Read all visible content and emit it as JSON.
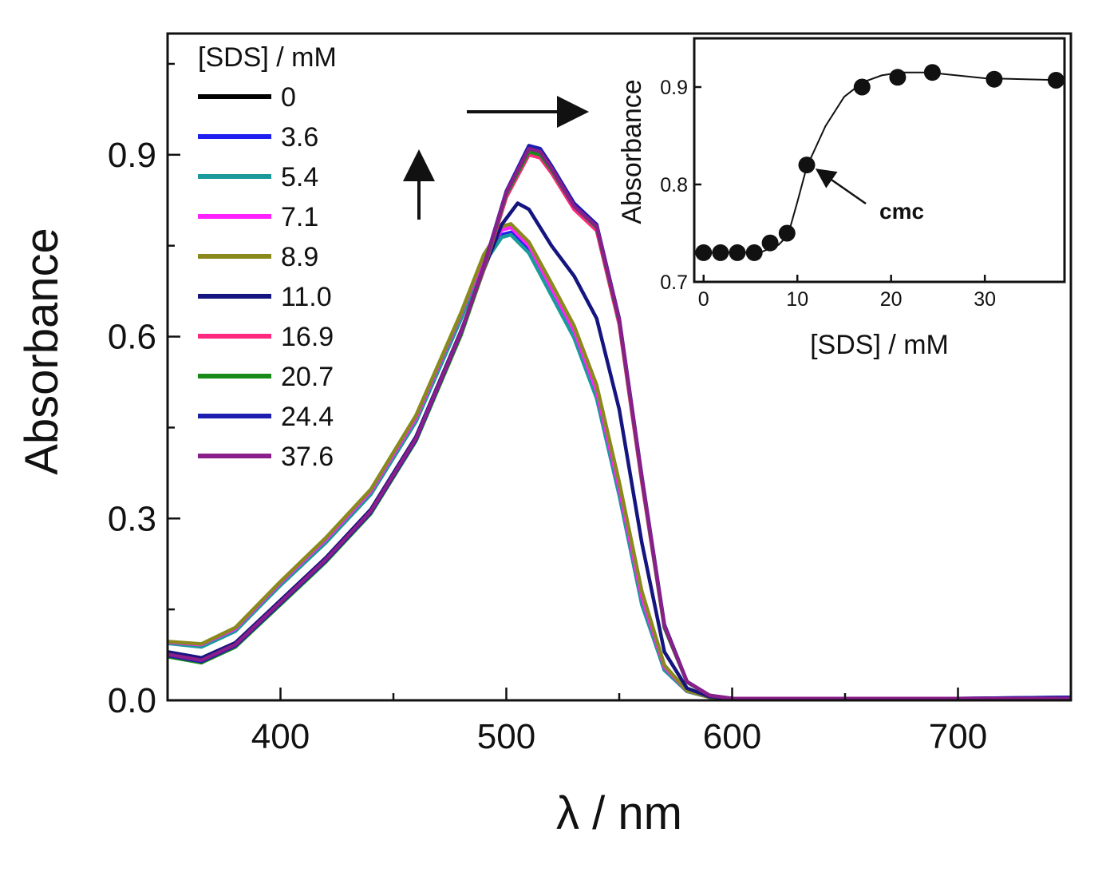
{
  "chart_data": [
    {
      "type": "line",
      "xlabel": "λ / nm",
      "ylabel": "Absorbance",
      "xlim": [
        350,
        750
      ],
      "ylim": [
        0.0,
        1.1
      ],
      "x_ticks": [
        400,
        500,
        600,
        700
      ],
      "y_ticks": [
        0.0,
        0.3,
        0.6,
        0.9
      ],
      "x_tick_labels": [
        "400",
        "500",
        "600",
        "700"
      ],
      "y_tick_labels": [
        "0.0",
        "0.3",
        "0.6",
        "0.9"
      ],
      "grid": false,
      "legend": {
        "title": "[SDS] / mM",
        "placement": "top-left"
      },
      "series": [
        {
          "name": "0",
          "color": "#000000",
          "x": [
            350,
            365,
            380,
            400,
            420,
            440,
            460,
            480,
            490,
            498,
            502,
            510,
            520,
            530,
            540,
            550,
            560,
            570,
            580,
            590,
            600,
            620,
            660,
            700,
            750
          ],
          "y": [
            0.095,
            0.09,
            0.115,
            0.19,
            0.26,
            0.34,
            0.46,
            0.63,
            0.72,
            0.765,
            0.77,
            0.74,
            0.67,
            0.6,
            0.5,
            0.34,
            0.16,
            0.05,
            0.015,
            0.005,
            0.003,
            0.003,
            0.003,
            0.003,
            0.003
          ]
        },
        {
          "name": "3.6",
          "color": "#1f1ff0",
          "x": [
            350,
            365,
            380,
            400,
            420,
            440,
            460,
            480,
            490,
            498,
            502,
            510,
            520,
            530,
            540,
            550,
            560,
            570,
            580,
            590,
            600,
            620,
            660,
            700,
            750
          ],
          "y": [
            0.095,
            0.09,
            0.116,
            0.192,
            0.262,
            0.342,
            0.462,
            0.632,
            0.722,
            0.768,
            0.772,
            0.742,
            0.672,
            0.602,
            0.502,
            0.342,
            0.162,
            0.05,
            0.015,
            0.005,
            0.003,
            0.003,
            0.003,
            0.003,
            0.003
          ]
        },
        {
          "name": "5.4",
          "color": "#1a9a9a",
          "x": [
            350,
            365,
            380,
            400,
            420,
            440,
            460,
            480,
            490,
            498,
            502,
            510,
            520,
            530,
            540,
            550,
            560,
            570,
            580,
            590,
            600,
            620,
            660,
            700,
            750
          ],
          "y": [
            0.094,
            0.088,
            0.114,
            0.19,
            0.26,
            0.34,
            0.46,
            0.63,
            0.72,
            0.764,
            0.768,
            0.738,
            0.668,
            0.598,
            0.498,
            0.338,
            0.158,
            0.05,
            0.015,
            0.005,
            0.003,
            0.003,
            0.003,
            0.003,
            0.003
          ]
        },
        {
          "name": "7.1",
          "color": "#ff22ff",
          "x": [
            350,
            365,
            380,
            400,
            420,
            440,
            460,
            480,
            490,
            498,
            502,
            510,
            520,
            530,
            540,
            550,
            560,
            570,
            580,
            590,
            600,
            620,
            660,
            700,
            750
          ],
          "y": [
            0.096,
            0.092,
            0.118,
            0.194,
            0.265,
            0.345,
            0.466,
            0.638,
            0.73,
            0.776,
            0.78,
            0.75,
            0.68,
            0.61,
            0.51,
            0.35,
            0.17,
            0.055,
            0.016,
            0.005,
            0.003,
            0.003,
            0.003,
            0.003,
            0.003
          ]
        },
        {
          "name": "8.9",
          "color": "#8a8a1c",
          "x": [
            350,
            365,
            380,
            400,
            420,
            440,
            460,
            480,
            490,
            498,
            502,
            510,
            520,
            530,
            540,
            550,
            560,
            570,
            580,
            590,
            600,
            620,
            660,
            700,
            750
          ],
          "y": [
            0.097,
            0.093,
            0.12,
            0.196,
            0.268,
            0.348,
            0.47,
            0.64,
            0.735,
            0.782,
            0.786,
            0.756,
            0.688,
            0.618,
            0.52,
            0.36,
            0.18,
            0.058,
            0.016,
            0.005,
            0.003,
            0.003,
            0.003,
            0.003,
            0.003
          ]
        },
        {
          "name": "11.0",
          "color": "#151580",
          "x": [
            350,
            365,
            380,
            400,
            420,
            440,
            460,
            480,
            490,
            498,
            505,
            510,
            520,
            530,
            540,
            550,
            560,
            570,
            580,
            590,
            600,
            620,
            660,
            700,
            750
          ],
          "y": [
            0.08,
            0.07,
            0.095,
            0.165,
            0.235,
            0.315,
            0.435,
            0.61,
            0.71,
            0.785,
            0.82,
            0.81,
            0.75,
            0.7,
            0.63,
            0.48,
            0.26,
            0.08,
            0.02,
            0.006,
            0.003,
            0.003,
            0.003,
            0.003,
            0.005
          ]
        },
        {
          "name": "16.9",
          "color": "#ff2a80",
          "x": [
            350,
            365,
            380,
            400,
            420,
            440,
            460,
            480,
            490,
            500,
            510,
            515,
            520,
            530,
            540,
            550,
            560,
            570,
            580,
            590,
            600,
            620,
            660,
            700,
            750
          ],
          "y": [
            0.075,
            0.065,
            0.09,
            0.16,
            0.23,
            0.31,
            0.43,
            0.605,
            0.71,
            0.83,
            0.9,
            0.895,
            0.87,
            0.81,
            0.775,
            0.62,
            0.36,
            0.12,
            0.03,
            0.008,
            0.003,
            0.003,
            0.003,
            0.003,
            0.003
          ]
        },
        {
          "name": "20.7",
          "color": "#178a17",
          "x": [
            350,
            365,
            380,
            400,
            420,
            440,
            460,
            480,
            490,
            500,
            510,
            515,
            520,
            530,
            540,
            550,
            560,
            570,
            580,
            590,
            600,
            620,
            660,
            700,
            750
          ],
          "y": [
            0.072,
            0.062,
            0.088,
            0.158,
            0.228,
            0.308,
            0.428,
            0.603,
            0.712,
            0.835,
            0.905,
            0.9,
            0.875,
            0.815,
            0.78,
            0.625,
            0.365,
            0.12,
            0.03,
            0.008,
            0.003,
            0.003,
            0.003,
            0.003,
            0.003
          ]
        },
        {
          "name": "24.4",
          "color": "#1d1db0",
          "x": [
            350,
            365,
            380,
            400,
            420,
            440,
            460,
            480,
            490,
            500,
            510,
            515,
            520,
            530,
            540,
            550,
            560,
            570,
            580,
            590,
            600,
            620,
            660,
            700,
            750
          ],
          "y": [
            0.074,
            0.064,
            0.09,
            0.16,
            0.23,
            0.31,
            0.43,
            0.607,
            0.716,
            0.84,
            0.915,
            0.91,
            0.882,
            0.82,
            0.785,
            0.63,
            0.37,
            0.125,
            0.031,
            0.008,
            0.003,
            0.003,
            0.003,
            0.003,
            0.005
          ]
        },
        {
          "name": "37.6",
          "color": "#8a1e8a",
          "x": [
            350,
            365,
            380,
            400,
            420,
            440,
            460,
            480,
            490,
            500,
            510,
            515,
            520,
            530,
            540,
            550,
            560,
            570,
            580,
            590,
            600,
            620,
            660,
            700,
            750
          ],
          "y": [
            0.076,
            0.066,
            0.092,
            0.162,
            0.232,
            0.312,
            0.432,
            0.608,
            0.715,
            0.838,
            0.91,
            0.905,
            0.878,
            0.815,
            0.782,
            0.628,
            0.368,
            0.123,
            0.031,
            0.008,
            0.003,
            0.003,
            0.003,
            0.003,
            0.003
          ]
        }
      ],
      "annotations": [
        {
          "kind": "arrow",
          "direction": "up"
        },
        {
          "kind": "arrow",
          "direction": "right"
        }
      ]
    },
    {
      "type": "scatter",
      "inset": true,
      "placement": "top-right",
      "xlabel": "[SDS] / mM",
      "ylabel": "Absorbance",
      "xlim": [
        -1,
        38.5
      ],
      "ylim": [
        0.7,
        0.95
      ],
      "x_ticks": [
        0,
        10,
        20,
        30
      ],
      "y_ticks": [
        0.7,
        0.8,
        0.9
      ],
      "x_tick_labels": [
        "0",
        "10",
        "20",
        "30"
      ],
      "y_tick_labels": [
        "0.7",
        "0.8",
        "0.9"
      ],
      "grid": false,
      "series": [
        {
          "x": [
            0,
            1.8,
            3.6,
            5.4,
            7.1,
            8.9,
            11.0,
            16.9,
            20.7,
            24.4,
            31.0,
            37.6
          ],
          "y": [
            0.73,
            0.73,
            0.73,
            0.73,
            0.74,
            0.75,
            0.82,
            0.9,
            0.91,
            0.915,
            0.908,
            0.907
          ]
        }
      ],
      "fit_curve": {
        "x": [
          0,
          6,
          8,
          9,
          10,
          11,
          13,
          15,
          17,
          19,
          21,
          24,
          30,
          38.5
        ],
        "y": [
          0.73,
          0.73,
          0.738,
          0.748,
          0.782,
          0.818,
          0.86,
          0.89,
          0.905,
          0.912,
          0.915,
          0.915,
          0.909,
          0.907
        ]
      },
      "annotations": [
        {
          "text": "cmc",
          "points_to_x": 11.0
        }
      ]
    }
  ]
}
